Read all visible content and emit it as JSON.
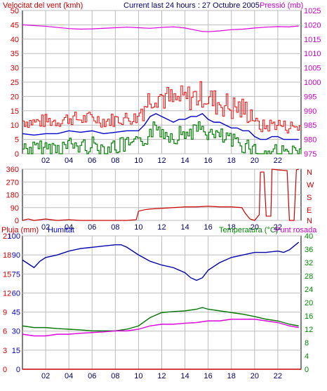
{
  "header": {
    "wind_label": "Velocitat del vent (kmh)",
    "title": "Current last 24 hours : 27 Octubre 2005",
    "pressure_label": "Pressió (mb)"
  },
  "panel2": {
    "compass_labels": [
      "N",
      "W",
      "S",
      "E",
      "N"
    ]
  },
  "panel3": {
    "rain_label": "Pluja (mm)",
    "humidity_label": "Humitat",
    "temperature_label": "Temperatura (°C)",
    "dewpoint_label": "Punt rosada"
  },
  "colors": {
    "wind_gust": "#ff0000",
    "wind_avg": "#008000",
    "wind_smooth": "#0000cc",
    "pressure": "#dd00dd",
    "direction": "#cc0000",
    "humidity": "#0000aa",
    "temperature": "#007700",
    "dewpoint": "#dd00dd",
    "rain": "#cc0000",
    "axis_red": "#cc0000",
    "axis_magenta": "#cc00cc",
    "axis_green": "#008800",
    "axis_blue": "#0000cc",
    "grid": "#bbbbbb"
  },
  "chart_data": [
    {
      "type": "line",
      "title": "Current last 24 hours : 27 Octubre 2005",
      "xlabel": "",
      "x_ticks": [
        "02",
        "04",
        "06",
        "08",
        "10",
        "12",
        "14",
        "16",
        "18",
        "20",
        "22"
      ],
      "ylabel": "Velocitat del vent (kmh)",
      "ylim": [
        0,
        50
      ],
      "y_ticks": [
        0,
        5,
        10,
        15,
        20,
        25,
        30,
        35,
        40,
        45,
        50
      ],
      "y2label": "Pressió (mb)",
      "y2lim": [
        975,
        1025
      ],
      "y2_ticks": [
        975,
        980,
        985,
        990,
        995,
        1000,
        1005,
        1010,
        1015,
        1020,
        1025
      ],
      "series": [
        {
          "axis": "right",
          "x": [
            0,
            2,
            4,
            5,
            6,
            8,
            9,
            10,
            11,
            12,
            13,
            14,
            15,
            15.5,
            16,
            17,
            18,
            19,
            20,
            21,
            22,
            23,
            23.8
          ],
          "values": [
            1020,
            1019.5,
            1018.7,
            1018.5,
            1018.6,
            1019,
            1019.2,
            1019,
            1018.8,
            1019.1,
            1019.3,
            1018.9,
            1018.1,
            1017.7,
            1017.6,
            1017.9,
            1018.3,
            1018.5,
            1018.9,
            1019.2,
            1019.4,
            1019.3,
            1019.6
          ]
        },
        {
          "axis": "left",
          "x": [
            0,
            1,
            2,
            3,
            4,
            5,
            6,
            7,
            8,
            9,
            10,
            10.5,
            11,
            11.5,
            12,
            12.5,
            13,
            13.5,
            14,
            14.5,
            15,
            15.5,
            16,
            16.5,
            17,
            17.5,
            18,
            18.5,
            19,
            19.5,
            20,
            20.5,
            21,
            21.5,
            22,
            22.5,
            23,
            23.8
          ],
          "values": [
            7,
            6.5,
            7,
            7,
            8,
            7.5,
            8,
            7,
            7.5,
            8,
            8,
            10,
            13,
            14,
            13,
            12,
            11,
            12,
            12,
            13,
            13,
            14,
            12,
            11,
            11,
            10,
            9,
            9,
            8,
            8,
            6,
            5,
            5,
            6,
            6,
            5,
            5,
            5
          ]
        }
      ]
    },
    {
      "type": "line",
      "title": "",
      "ylim": [
        0,
        360
      ],
      "y_ticks": [
        0,
        90,
        180,
        270,
        360
      ],
      "x_ticks": [
        "02",
        "04",
        "06",
        "08",
        "10",
        "12",
        "14",
        "16",
        "18",
        "20",
        "22"
      ],
      "series": [
        {
          "x": [
            0,
            0.5,
            1,
            2,
            3,
            4,
            5,
            6,
            7,
            8,
            9,
            9.8,
            10,
            10.5,
            11,
            12,
            13,
            14,
            15,
            16,
            17,
            18,
            18.9,
            19.2,
            19.6,
            20,
            20.4,
            20.5,
            20.8,
            21,
            21.4,
            21.5,
            22,
            22.8,
            23,
            23.4,
            23.6,
            23.8
          ],
          "values": [
            0,
            10,
            0,
            10,
            0,
            5,
            0,
            0,
            0,
            0,
            0,
            5,
            65,
            75,
            80,
            85,
            90,
            95,
            95,
            100,
            95,
            95,
            90,
            50,
            10,
            0,
            40,
            340,
            340,
            30,
            30,
            360,
            355,
            350,
            0,
            0,
            355,
            360
          ]
        }
      ]
    },
    {
      "type": "line",
      "title": "",
      "ylabel": "Pluja (mm)",
      "ylim": [
        0,
        105
      ],
      "y_ticks": [
        0,
        15,
        30,
        45,
        60,
        75,
        90,
        105
      ],
      "y_tick_labels": [
        "0",
        "3",
        "6",
        "9",
        "12",
        "15",
        "18",
        "21"
      ],
      "y_tick_labels_left2": [
        "0",
        "15",
        "30",
        "45",
        "60",
        "75",
        "90",
        "100"
      ],
      "y2label": "Temperatura (°C)",
      "y2lim": [
        0,
        40
      ],
      "y2_ticks": [
        0,
        4,
        8,
        12,
        16,
        20,
        24,
        28,
        32,
        36,
        40
      ],
      "x_ticks": [
        "02",
        "04",
        "06",
        "08",
        "10",
        "12",
        "14",
        "16",
        "18",
        "20",
        "22"
      ],
      "series": [
        {
          "name": "Humitat",
          "axis": "left",
          "x": [
            0,
            1,
            1.5,
            2,
            3,
            4,
            5,
            6,
            7,
            8,
            8.5,
            9,
            10,
            11,
            12,
            13,
            14,
            14.5,
            15,
            15.5,
            16,
            17,
            18,
            19,
            20,
            21,
            22,
            22.5,
            23,
            23.8
          ],
          "values": [
            86,
            80,
            85,
            88,
            90,
            93,
            95,
            96,
            97,
            98,
            98,
            96,
            90,
            85,
            82,
            80,
            76,
            72,
            70,
            72,
            78,
            84,
            88,
            90,
            92,
            92,
            93,
            92,
            94,
            100
          ]
        },
        {
          "name": "Temperatura",
          "axis": "right",
          "x": [
            0,
            1,
            2,
            3,
            4,
            5,
            6,
            7,
            8,
            9,
            10,
            11,
            12,
            13,
            14,
            15,
            15.5,
            16,
            17,
            18,
            19,
            20,
            21,
            22,
            23,
            23.8
          ],
          "values": [
            13,
            12.5,
            12.5,
            12.2,
            12,
            11.8,
            11.5,
            11.5,
            11.5,
            12,
            13,
            15.5,
            17,
            17.3,
            17.5,
            18,
            18.5,
            18,
            17.5,
            17,
            16.5,
            15.8,
            15,
            14.5,
            13.5,
            13
          ]
        },
        {
          "name": "Punt rosada",
          "axis": "right",
          "x": [
            0,
            1,
            2,
            3,
            4,
            5,
            6,
            7,
            8,
            9,
            10,
            11,
            12,
            13,
            14,
            15,
            16,
            17,
            18,
            19,
            20,
            21,
            22,
            23,
            23.8
          ],
          "values": [
            10.5,
            10,
            10,
            10.5,
            10.5,
            10.8,
            11,
            11.2,
            11.5,
            11.5,
            12,
            13,
            13.5,
            13.5,
            13.8,
            14,
            14.5,
            14.5,
            15,
            15,
            15,
            14.5,
            14,
            13,
            12.5
          ]
        },
        {
          "name": "Pluja",
          "axis": "left",
          "x": [
            0,
            24
          ],
          "values": [
            0,
            0
          ]
        }
      ]
    }
  ]
}
